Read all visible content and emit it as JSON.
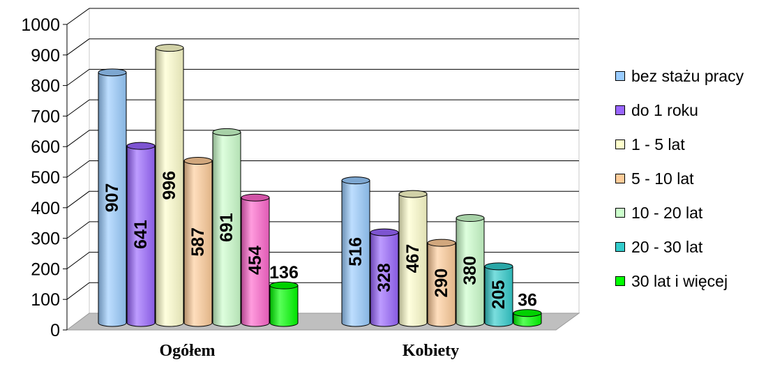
{
  "chart_data": {
    "type": "bar",
    "categories": [
      "Ogółem",
      "Kobiety"
    ],
    "series": [
      {
        "name": "bez stażu pracy",
        "values": [
          907,
          516
        ],
        "value_labels": [
          "907",
          "516"
        ],
        "color": "#99ccff"
      },
      {
        "name": "do 1 roku",
        "values": [
          641,
          328
        ],
        "value_labels": [
          "641",
          "328"
        ],
        "color": "#9966ff"
      },
      {
        "name": "1 - 5 lat",
        "values": [
          996,
          467
        ],
        "value_labels": [
          "996",
          "467"
        ],
        "color": "#ffffcc"
      },
      {
        "name": "5 - 10 lat",
        "values": [
          587,
          290
        ],
        "value_labels": [
          "587",
          "290"
        ],
        "color": "#ffcc99"
      },
      {
        "name": "10 - 20 lat",
        "values": [
          691,
          380
        ],
        "value_labels": [
          "691",
          "380"
        ],
        "color": "#ccffcc"
      },
      {
        "name": "20 - 30 lat",
        "values": [
          454,
          205
        ],
        "value_labels": [
          "454",
          "205"
        ],
        "color_first": "#ff66cc",
        "color": "#33cccc"
      },
      {
        "name": "30 lat i więcej",
        "values": [
          136,
          36
        ],
        "value_labels": [
          "136",
          "36"
        ],
        "color": "#00ff00"
      }
    ],
    "yticks": [
      "0",
      "100",
      "200",
      "300",
      "400",
      "500",
      "600",
      "700",
      "800",
      "900",
      "1000"
    ],
    "ylim": [
      0,
      1000
    ],
    "grid": true,
    "legend_position": "right",
    "style": "3d-cylinder"
  }
}
